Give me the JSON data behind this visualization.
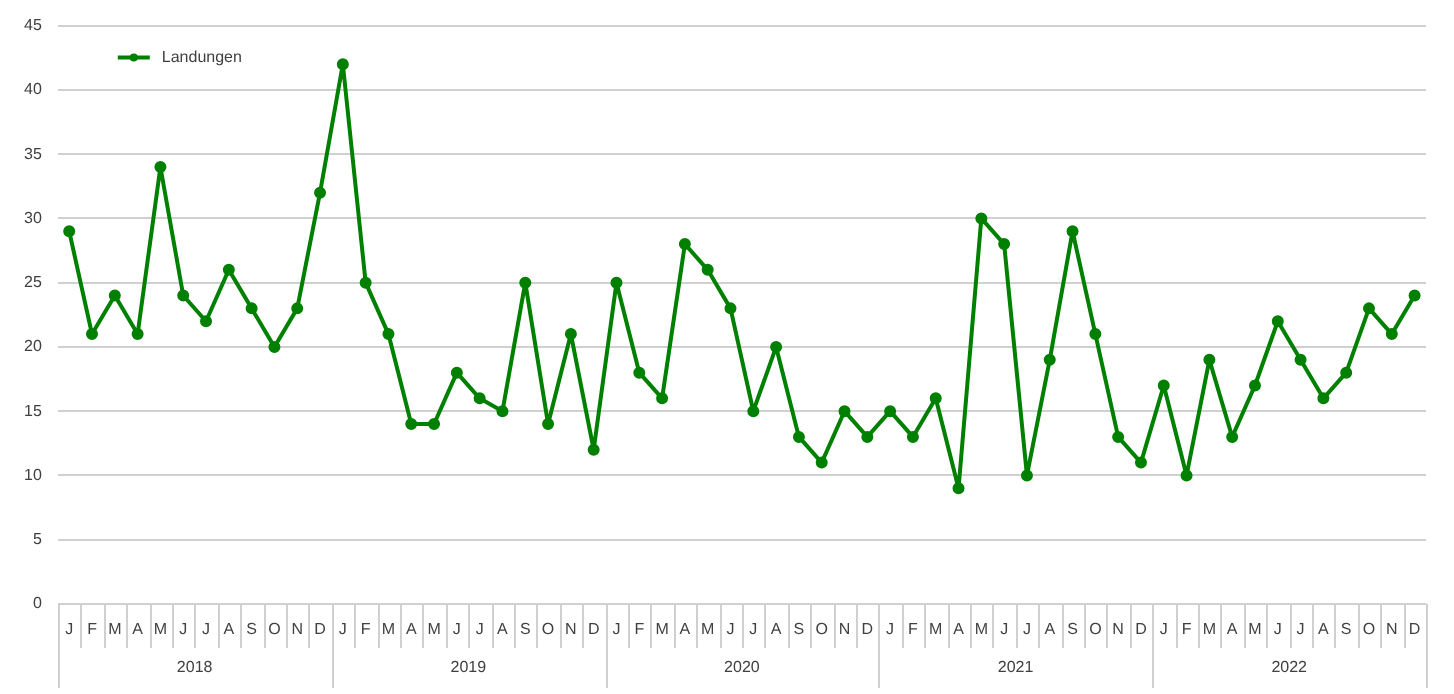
{
  "chart_data": {
    "type": "line",
    "categories": [
      "J",
      "F",
      "M",
      "A",
      "M",
      "J",
      "J",
      "A",
      "S",
      "O",
      "N",
      "D",
      "J",
      "F",
      "M",
      "A",
      "M",
      "J",
      "J",
      "A",
      "S",
      "O",
      "N",
      "D",
      "J",
      "F",
      "M",
      "A",
      "M",
      "J",
      "J",
      "A",
      "S",
      "O",
      "N",
      "D",
      "J",
      "F",
      "M",
      "A",
      "M",
      "J",
      "J",
      "A",
      "S",
      "O",
      "N",
      "D",
      "J",
      "F",
      "M",
      "A",
      "M",
      "J",
      "J",
      "A",
      "S",
      "O",
      "N",
      "D"
    ],
    "series": [
      {
        "name": "Landungen",
        "color": "#008000",
        "values": [
          29,
          21,
          24,
          21,
          34,
          24,
          22,
          26,
          23,
          20,
          23,
          32,
          42,
          25,
          21,
          14,
          14,
          18,
          16,
          15,
          25,
          14,
          21,
          12,
          25,
          18,
          16,
          28,
          26,
          23,
          15,
          20,
          13,
          11,
          15,
          13,
          15,
          13,
          16,
          9,
          30,
          28,
          10,
          19,
          29,
          21,
          13,
          11,
          17,
          10,
          19,
          13,
          17,
          22,
          19,
          16,
          18,
          23,
          21,
          24
        ]
      }
    ],
    "annotations": [
      "2018",
      "2019",
      "2020",
      "2021",
      "2022"
    ],
    "ylim": [
      0,
      45
    ],
    "yticks": [
      0,
      5,
      10,
      15,
      20,
      25,
      30,
      35,
      40,
      45
    ],
    "grid": "y",
    "legend": "top left",
    "marker": "circle",
    "line_style": "solid"
  }
}
